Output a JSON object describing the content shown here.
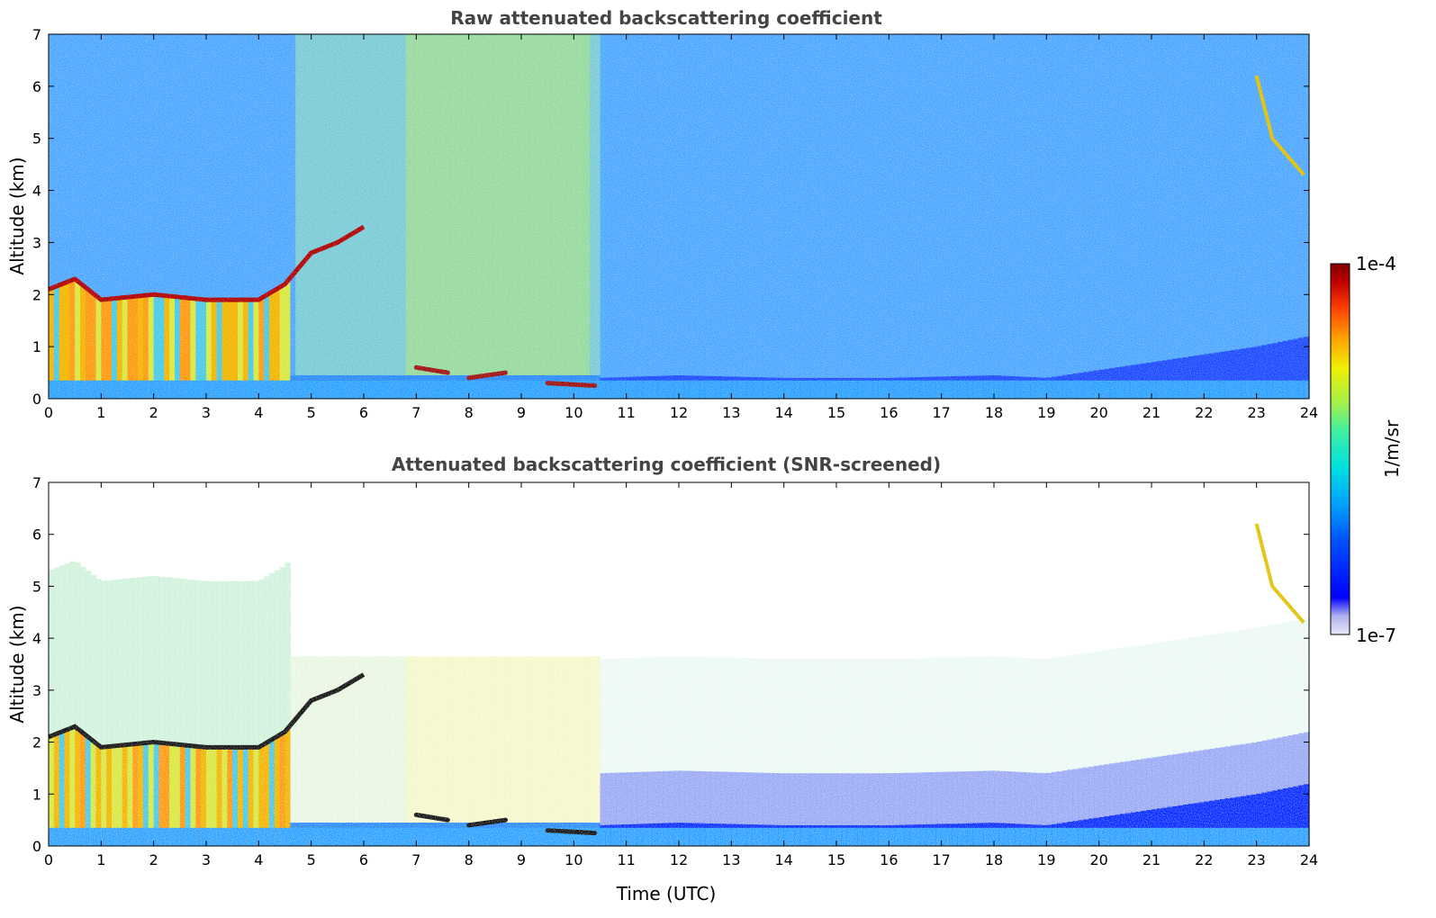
{
  "chart_data": [
    {
      "type": "heatmap",
      "title": "Raw attenuated backscattering coefficient",
      "xlabel": "",
      "ylabel": "Altitude (km)",
      "xlim": [
        0,
        24
      ],
      "ylim": [
        0,
        7
      ],
      "xticks": [
        "0",
        "1",
        "2",
        "3",
        "4",
        "5",
        "6",
        "7",
        "8",
        "9",
        "10",
        "11",
        "12",
        "13",
        "14",
        "15",
        "16",
        "17",
        "18",
        "19",
        "20",
        "21",
        "22",
        "23",
        "24"
      ],
      "yticks": [
        "0",
        "1",
        "2",
        "3",
        "4",
        "5",
        "6",
        "7"
      ],
      "color_scale": "jet, logarithmic",
      "features": {
        "cloud_top_layer": [
          [
            0,
            2.1
          ],
          [
            0.5,
            2.3
          ],
          [
            1,
            1.9
          ],
          [
            2,
            2.0
          ],
          [
            3,
            1.9
          ],
          [
            4,
            1.9
          ],
          [
            4.5,
            2.2
          ],
          [
            5,
            2.8
          ],
          [
            5.5,
            3.0
          ],
          [
            6,
            3.3
          ]
        ],
        "boundary_layer_top": [
          [
            10.5,
            0.4
          ],
          [
            12,
            0.45
          ],
          [
            14,
            0.4
          ],
          [
            16,
            0.4
          ],
          [
            18,
            0.45
          ],
          [
            19,
            0.4
          ],
          [
            20,
            0.55
          ],
          [
            21,
            0.7
          ],
          [
            22,
            0.85
          ],
          [
            23,
            1.0
          ],
          [
            24,
            1.2
          ]
        ],
        "low_cloud_segments": [
          [
            7,
            0.6
          ],
          [
            7.6,
            0.5
          ],
          [
            8,
            0.4
          ],
          [
            8.7,
            0.5
          ],
          [
            9.5,
            0.3
          ],
          [
            10.4,
            0.25
          ]
        ],
        "high_cloud": [
          [
            23,
            6.2
          ],
          [
            23.3,
            5.0
          ],
          [
            23.9,
            4.3
          ]
        ]
      }
    },
    {
      "type": "heatmap",
      "title": "Attenuated backscattering coefficient (SNR-screened)",
      "xlabel": "Time (UTC)",
      "ylabel": "Altitude (km)",
      "xlim": [
        0,
        24
      ],
      "ylim": [
        0,
        7
      ],
      "xticks": [
        "0",
        "1",
        "2",
        "3",
        "4",
        "5",
        "6",
        "7",
        "8",
        "9",
        "10",
        "11",
        "12",
        "13",
        "14",
        "15",
        "16",
        "17",
        "18",
        "19",
        "20",
        "21",
        "22",
        "23",
        "24"
      ],
      "yticks": [
        "0",
        "1",
        "2",
        "3",
        "4",
        "5",
        "6",
        "7"
      ],
      "color_scale": "jet, logarithmic",
      "features": {
        "cloud_top_layer": [
          [
            0,
            2.1
          ],
          [
            0.5,
            2.3
          ],
          [
            1,
            1.9
          ],
          [
            2,
            2.0
          ],
          [
            3,
            1.9
          ],
          [
            4,
            1.9
          ],
          [
            4.5,
            2.2
          ],
          [
            5,
            2.8
          ],
          [
            5.5,
            3.0
          ],
          [
            6,
            3.3
          ]
        ],
        "boundary_layer_top": [
          [
            10.5,
            0.4
          ],
          [
            12,
            0.45
          ],
          [
            14,
            0.4
          ],
          [
            16,
            0.4
          ],
          [
            18,
            0.45
          ],
          [
            19,
            0.4
          ],
          [
            20,
            0.55
          ],
          [
            21,
            0.7
          ],
          [
            22,
            0.85
          ],
          [
            23,
            1.0
          ],
          [
            24,
            1.2
          ]
        ],
        "low_cloud_segments": [
          [
            7,
            0.6
          ],
          [
            7.6,
            0.5
          ],
          [
            8,
            0.4
          ],
          [
            8.7,
            0.5
          ],
          [
            9.5,
            0.3
          ],
          [
            10.4,
            0.25
          ]
        ],
        "high_cloud": [
          [
            23,
            6.2
          ],
          [
            23.3,
            5.0
          ],
          [
            23.9,
            4.3
          ]
        ]
      }
    }
  ],
  "colorbar": {
    "max_label": "1e-4",
    "min_label": "1e-7",
    "unit_label": "1/m/sr",
    "colors": [
      "#e8e8f8",
      "#b0b0f0",
      "#0000ff",
      "#0050ff",
      "#00a0ff",
      "#00e0e0",
      "#40f0a0",
      "#a0f050",
      "#f0f000",
      "#ffa000",
      "#ff4000",
      "#c00000",
      "#800000"
    ]
  }
}
